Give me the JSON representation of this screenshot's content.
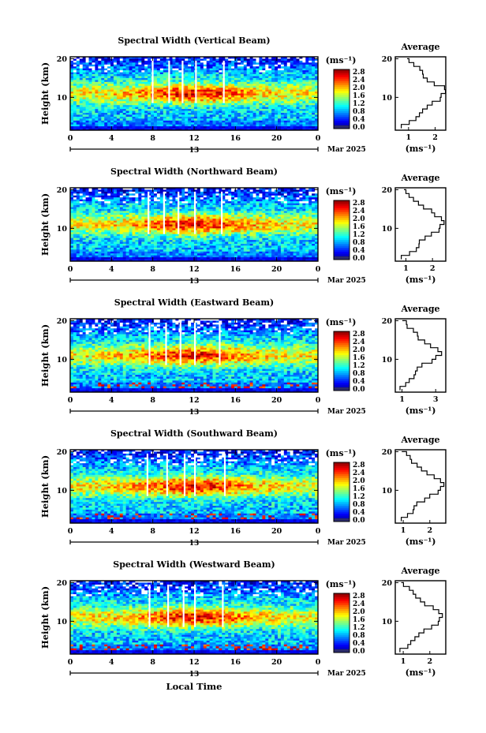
{
  "chart_data": [
    {
      "type": "heatmap",
      "title": "Spectral Width (Vertical Beam)",
      "xlabel": "",
      "ylabel": "Height (km)",
      "xticks": [
        "0",
        "4",
        "8",
        "12",
        "16",
        "20",
        "0"
      ],
      "yticks": [
        "20",
        "10"
      ],
      "date_label": "13",
      "month_label": "Mar 2025",
      "xlim": [
        0,
        24
      ],
      "ylim": [
        1.5,
        20.5
      ],
      "z_unit": "(ms⁻¹)",
      "colorbar_ticks": [
        "2.8",
        "2.4",
        "2.0",
        "1.6",
        "1.2",
        "0.8",
        "0.4",
        "0.0"
      ],
      "zlim": [
        0,
        3
      ],
      "gap_columns_hour": [
        7.9,
        9.5,
        10.8,
        12.1,
        14.8
      ],
      "profile": {
        "title": "Average",
        "xticks": [
          "1",
          "2"
        ],
        "xtick_values": [
          1,
          2
        ],
        "xlim": [
          0.5,
          2.4
        ],
        "xlabel": "(ms⁻¹)",
        "yticks": [
          "20",
          "10"
        ],
        "height_km": [
          2,
          3,
          4,
          5,
          6,
          7,
          8,
          9,
          10,
          11,
          12,
          13,
          14,
          15,
          16,
          17,
          18,
          19,
          20
        ],
        "width_ms": [
          0.8,
          1.1,
          1.3,
          1.4,
          1.5,
          1.7,
          1.95,
          2.15,
          2.3,
          2.35,
          2.3,
          2.0,
          1.75,
          1.6,
          1.5,
          1.35,
          1.2,
          1.05,
          0.9
        ]
      }
    },
    {
      "type": "heatmap",
      "title": "Spectral Width (Northward Beam)",
      "xlabel": "",
      "ylabel": "Height (km)",
      "xticks": [
        "0",
        "4",
        "8",
        "12",
        "16",
        "20",
        "0"
      ],
      "yticks": [
        "20",
        "10"
      ],
      "date_label": "13",
      "month_label": "Mar 2025",
      "xlim": [
        0,
        24
      ],
      "ylim": [
        1.5,
        20.5
      ],
      "z_unit": "(ms⁻¹)",
      "colorbar_ticks": [
        "2.8",
        "2.4",
        "2.0",
        "1.6",
        "1.2",
        "0.8",
        "0.4",
        "0.0"
      ],
      "zlim": [
        0,
        3
      ],
      "gap_columns_hour": [
        7.5,
        9.0,
        10.4,
        12.0,
        14.6
      ],
      "profile": {
        "title": "Average",
        "xticks": [
          "1",
          "2"
        ],
        "xtick_values": [
          1,
          2
        ],
        "xlim": [
          0.6,
          2.5
        ],
        "xlabel": "(ms⁻¹)",
        "yticks": [
          "20",
          "10"
        ],
        "height_km": [
          2,
          3,
          4,
          5,
          6,
          7,
          8,
          9,
          10,
          11,
          12,
          13,
          14,
          15,
          16,
          17,
          18,
          19,
          20
        ],
        "width_ms": [
          0.9,
          1.2,
          1.35,
          1.45,
          1.55,
          1.75,
          1.95,
          2.2,
          2.35,
          2.4,
          2.3,
          2.1,
          1.9,
          1.7,
          1.5,
          1.3,
          1.15,
          1.0,
          0.9
        ]
      }
    },
    {
      "type": "heatmap",
      "title": "Spectral Width (Eastward Beam)",
      "xlabel": "",
      "ylabel": "Height (km)",
      "xticks": [
        "0",
        "4",
        "8",
        "12",
        "16",
        "20",
        "0"
      ],
      "yticks": [
        "20",
        "10"
      ],
      "date_label": "13",
      "month_label": "Mar 2025",
      "xlim": [
        0,
        24
      ],
      "ylim": [
        1.5,
        20.5
      ],
      "z_unit": "(ms⁻¹)",
      "colorbar_ticks": [
        "2.8",
        "2.4",
        "2.0",
        "1.6",
        "1.2",
        "0.8",
        "0.4",
        "0.0"
      ],
      "zlim": [
        0,
        3
      ],
      "gap_columns_hour": [
        7.6,
        9.2,
        10.6,
        12.0,
        14.4
      ],
      "profile": {
        "title": "Average",
        "xticks": [
          "1",
          "3"
        ],
        "xtick_values": [
          1,
          3
        ],
        "xlim": [
          0.6,
          3.6
        ],
        "xlabel": "(ms⁻¹)",
        "yticks": [
          "20",
          "10"
        ],
        "height_km": [
          2,
          3,
          4,
          5,
          6,
          7,
          8,
          9,
          10,
          11,
          12,
          13,
          14,
          15,
          16,
          17,
          18,
          19,
          20
        ],
        "width_ms": [
          1.0,
          1.3,
          1.5,
          1.6,
          1.75,
          2.0,
          2.3,
          2.7,
          3.1,
          3.3,
          3.1,
          2.7,
          2.3,
          2.0,
          1.8,
          1.6,
          1.4,
          1.2,
          1.0
        ]
      }
    },
    {
      "type": "heatmap",
      "title": "Spectral Width (Southward Beam)",
      "xlabel": "",
      "ylabel": "Height (km)",
      "xticks": [
        "0",
        "4",
        "8",
        "12",
        "16",
        "20",
        "0"
      ],
      "yticks": [
        "20",
        "10"
      ],
      "date_label": "13",
      "month_label": "Mar 2025",
      "xlim": [
        0,
        24
      ],
      "ylim": [
        1.5,
        20.5
      ],
      "z_unit": "(ms⁻¹)",
      "colorbar_ticks": [
        "2.8",
        "2.4",
        "2.0",
        "1.6",
        "1.2",
        "0.8",
        "0.4",
        "0.0"
      ],
      "zlim": [
        0,
        3
      ],
      "gap_columns_hour": [
        7.4,
        9.3,
        11.0,
        12.0,
        14.9
      ],
      "profile": {
        "title": "Average",
        "xticks": [
          "1",
          "2"
        ],
        "xtick_values": [
          1,
          2
        ],
        "xlim": [
          0.7,
          2.6
        ],
        "xlabel": "(ms⁻¹)",
        "yticks": [
          "20",
          "10"
        ],
        "height_km": [
          2,
          3,
          4,
          5,
          6,
          7,
          8,
          9,
          10,
          11,
          12,
          13,
          14,
          15,
          16,
          17,
          18,
          19,
          20
        ],
        "width_ms": [
          1.0,
          1.2,
          1.35,
          1.45,
          1.55,
          1.75,
          2.0,
          2.25,
          2.45,
          2.5,
          2.4,
          2.15,
          1.9,
          1.7,
          1.5,
          1.35,
          1.2,
          1.05,
          0.95
        ]
      }
    },
    {
      "type": "heatmap",
      "title": "Spectral Width (Westward Beam)",
      "xlabel": "Local Time",
      "ylabel": "Height (km)",
      "xticks": [
        "0",
        "4",
        "8",
        "12",
        "16",
        "20",
        "0"
      ],
      "yticks": [
        "20",
        "10"
      ],
      "date_label": "13",
      "month_label": "Mar 2025",
      "xlim": [
        0,
        24
      ],
      "ylim": [
        1.5,
        20.5
      ],
      "z_unit": "(ms⁻¹)",
      "colorbar_ticks": [
        "2.8",
        "2.4",
        "2.0",
        "1.6",
        "1.2",
        "0.8",
        "0.4",
        "0.0"
      ],
      "zlim": [
        0,
        3
      ],
      "gap_columns_hour": [
        7.6,
        9.4,
        10.9,
        12.0,
        14.7
      ],
      "profile": {
        "title": "Average",
        "xticks": [
          "1",
          "2"
        ],
        "xtick_values": [
          1,
          2
        ],
        "xlim": [
          0.7,
          2.6
        ],
        "xlabel": "(ms⁻¹)",
        "yticks": [
          "20",
          "10"
        ],
        "height_km": [
          2,
          3,
          4,
          5,
          6,
          7,
          8,
          9,
          10,
          11,
          12,
          13,
          14,
          15,
          16,
          17,
          18,
          19,
          20
        ],
        "width_ms": [
          0.95,
          1.2,
          1.35,
          1.45,
          1.55,
          1.75,
          2.0,
          2.25,
          2.4,
          2.45,
          2.35,
          2.1,
          1.85,
          1.65,
          1.5,
          1.35,
          1.2,
          1.05,
          0.95
        ]
      }
    }
  ]
}
